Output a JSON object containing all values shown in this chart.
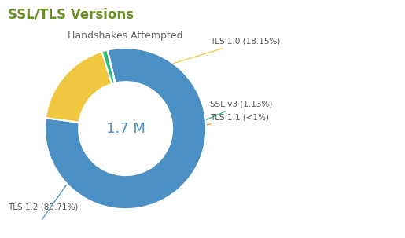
{
  "title": "SSL/TLS Versions",
  "subtitle": "Handshakes Attempted",
  "center_text": "1.7 M",
  "slices": [
    {
      "label": "TLS 1.2 (80.71%)",
      "value": 80.71,
      "color": "#4A90C4"
    },
    {
      "label": "TLS 1.0 (18.15%)",
      "value": 18.15,
      "color": "#F0C840"
    },
    {
      "label": "SSL v3 (1.13%)",
      "value": 1.13,
      "color": "#2EB87A"
    },
    {
      "label": "TLS 1.1 (<1%)",
      "value": 0.01,
      "color": "#E8A020"
    }
  ],
  "background_color": "#ffffff",
  "title_color": "#6B8E23",
  "subtitle_color": "#666666",
  "center_text_color": "#4A90C4",
  "label_color": "#555555",
  "donut_width": 0.42,
  "start_angle": 103
}
